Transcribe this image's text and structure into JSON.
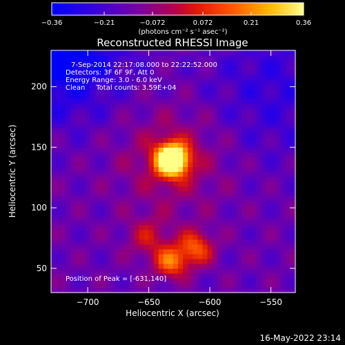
{
  "chart_data": {
    "type": "heatmap",
    "title": "Reconstructed RHESSI Image",
    "colorbar": {
      "ticks": [
        "-0.36",
        "-0.21",
        "-0.072",
        "0.072",
        "0.21",
        "0.36"
      ],
      "range": [
        -0.36,
        0.36
      ],
      "unit_label": "(photons cm⁻² s⁻¹ asec⁻²)"
    },
    "annotations": [
      "7-Sep-2014 22:17:08.000 to 22:22:52.000",
      "Detectors: 3F 6F 9F, Att 0",
      "Energy Range: 3.0 - 6.0 keV",
      "Clean     Total counts: 3.59E+04"
    ],
    "peak_text": "Position of Peak = [-631,140]",
    "peak": {
      "x": -631,
      "y": 140
    },
    "xlabel": "Heliocentric X (arcsec)",
    "ylabel": "Heliocentric Y (arcsec)",
    "xlim": [
      -730,
      -530
    ],
    "ylim": [
      30,
      230
    ],
    "x_ticks": [
      {
        "value": -700,
        "label": "−700"
      },
      {
        "value": -650,
        "label": "−650"
      },
      {
        "value": -600,
        "label": "−600"
      },
      {
        "value": -550,
        "label": "−550"
      }
    ],
    "y_ticks": [
      {
        "value": 50,
        "label": "50"
      },
      {
        "value": 100,
        "label": "100"
      },
      {
        "value": 150,
        "label": "150"
      },
      {
        "value": 200,
        "label": "200"
      }
    ],
    "footer": "16-May-2022 23:14",
    "colors": {
      "background": "#000000",
      "foreground": "#ffffff"
    }
  }
}
